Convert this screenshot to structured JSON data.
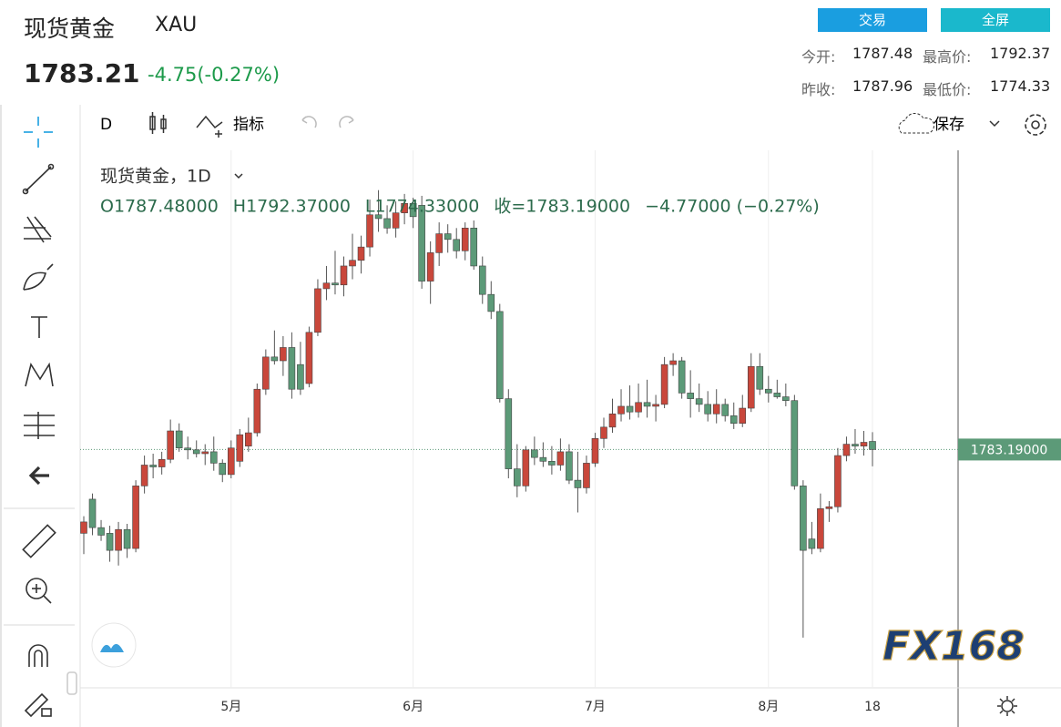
{
  "header": {
    "title": "现货黄金",
    "symbol": "XAU",
    "price": "1783.21",
    "change": "-4.75(-0.27%)",
    "buttons": [
      "交易",
      "全屏"
    ],
    "stats": [
      [
        "今开:",
        "1787.48",
        "最高价:",
        "1792.37"
      ],
      [
        "昨收:",
        "1787.96",
        "最低价:",
        "1774.33"
      ]
    ]
  },
  "toolbar": {
    "interval": "D",
    "indicators": "指标",
    "save": "保存"
  },
  "watermark": "FX168",
  "chart_data": {
    "type": "candlestick",
    "title": "现货黄金，1D",
    "legend": [
      "O1787.48000",
      "H1792.37000",
      "L1774.33000",
      "收=1783.19000",
      "−4.77000 (−0.27%)"
    ],
    "up_color": "#c9473b",
    "down_color": "#5c9a78",
    "ylim": [
      1657.5,
      1941
    ],
    "last_price": {
      "value": 1783.19,
      "label": "1783.19000"
    },
    "categories": [
      null,
      null,
      null,
      null,
      null,
      null,
      null,
      null,
      null,
      null,
      null,
      null,
      null,
      null,
      null,
      null,
      null,
      "5月",
      null,
      null,
      null,
      null,
      null,
      null,
      null,
      null,
      null,
      null,
      null,
      null,
      null,
      null,
      null,
      null,
      null,
      null,
      null,
      null,
      "6月",
      null,
      null,
      null,
      null,
      null,
      null,
      null,
      null,
      null,
      null,
      null,
      null,
      null,
      null,
      null,
      null,
      null,
      null,
      null,
      null,
      "7月",
      null,
      null,
      null,
      null,
      null,
      null,
      null,
      null,
      null,
      null,
      null,
      null,
      null,
      null,
      null,
      null,
      null,
      null,
      null,
      "8月",
      null,
      null,
      null,
      null,
      null,
      null,
      null,
      null,
      null,
      null,
      null,
      "18"
    ],
    "ohlc": [
      [
        1739,
        1748,
        1728,
        1745
      ],
      [
        1757,
        1760,
        1738,
        1742
      ],
      [
        1742,
        1746,
        1735,
        1738
      ],
      [
        1739,
        1743,
        1724,
        1730
      ],
      [
        1730,
        1745,
        1722,
        1741
      ],
      [
        1741,
        1744,
        1726,
        1731
      ],
      [
        1731,
        1767,
        1729,
        1764
      ],
      [
        1764,
        1780,
        1760,
        1775
      ],
      [
        1775,
        1781,
        1768,
        1774
      ],
      [
        1774,
        1782,
        1770,
        1778
      ],
      [
        1778,
        1799,
        1776,
        1793
      ],
      [
        1793,
        1797,
        1782,
        1784
      ],
      [
        1784,
        1790,
        1778,
        1783
      ],
      [
        1783,
        1788,
        1779,
        1781
      ],
      [
        1781,
        1786,
        1775,
        1782
      ],
      [
        1782,
        1790,
        1772,
        1776
      ],
      [
        1776,
        1778,
        1766,
        1770
      ],
      [
        1770,
        1788,
        1768,
        1784
      ],
      [
        1777,
        1794,
        1774,
        1791
      ],
      [
        1785,
        1800,
        1782,
        1792
      ],
      [
        1792,
        1818,
        1790,
        1815
      ],
      [
        1815,
        1836,
        1812,
        1832
      ],
      [
        1832,
        1846,
        1828,
        1830
      ],
      [
        1830,
        1843,
        1822,
        1837
      ],
      [
        1837,
        1845,
        1810,
        1815
      ],
      [
        1828,
        1840,
        1812,
        1815
      ],
      [
        1818,
        1848,
        1816,
        1845
      ],
      [
        1845,
        1873,
        1843,
        1868
      ],
      [
        1868,
        1880,
        1862,
        1871
      ],
      [
        1871,
        1888,
        1865,
        1870
      ],
      [
        1870,
        1885,
        1864,
        1880
      ],
      [
        1880,
        1897,
        1873,
        1883
      ],
      [
        1883,
        1896,
        1876,
        1890
      ],
      [
        1890,
        1915,
        1885,
        1907
      ],
      [
        1907,
        1920,
        1898,
        1905
      ],
      [
        1905,
        1912,
        1897,
        1900
      ],
      [
        1900,
        1914,
        1895,
        1908
      ],
      [
        1908,
        1918,
        1902,
        1913
      ],
      [
        1913,
        1916,
        1900,
        1906
      ],
      [
        1912,
        1917,
        1868,
        1872
      ],
      [
        1872,
        1893,
        1860,
        1887
      ],
      [
        1887,
        1903,
        1880,
        1897
      ],
      [
        1897,
        1902,
        1887,
        1894
      ],
      [
        1894,
        1900,
        1884,
        1888
      ],
      [
        1888,
        1903,
        1883,
        1900
      ],
      [
        1900,
        1904,
        1878,
        1880
      ],
      [
        1880,
        1885,
        1860,
        1865
      ],
      [
        1865,
        1872,
        1852,
        1856
      ],
      [
        1856,
        1860,
        1808,
        1810
      ],
      [
        1810,
        1815,
        1768,
        1773
      ],
      [
        1773,
        1786,
        1758,
        1764
      ],
      [
        1764,
        1785,
        1761,
        1783
      ],
      [
        1783,
        1790,
        1775,
        1779
      ],
      [
        1779,
        1787,
        1774,
        1777
      ],
      [
        1777,
        1785,
        1770,
        1775
      ],
      [
        1775,
        1789,
        1772,
        1782
      ],
      [
        1782,
        1786,
        1765,
        1767
      ],
      [
        1767,
        1782,
        1750,
        1763
      ],
      [
        1763,
        1780,
        1760,
        1776
      ],
      [
        1776,
        1792,
        1774,
        1789
      ],
      [
        1789,
        1800,
        1784,
        1795
      ],
      [
        1795,
        1810,
        1792,
        1802
      ],
      [
        1802,
        1815,
        1798,
        1806
      ],
      [
        1806,
        1817,
        1799,
        1803
      ],
      [
        1803,
        1818,
        1800,
        1808
      ],
      [
        1808,
        1820,
        1800,
        1806
      ],
      [
        1806,
        1812,
        1798,
        1807
      ],
      [
        1807,
        1832,
        1805,
        1828
      ],
      [
        1828,
        1834,
        1822,
        1830
      ],
      [
        1830,
        1832,
        1810,
        1813
      ],
      [
        1813,
        1825,
        1800,
        1810
      ],
      [
        1810,
        1818,
        1803,
        1807
      ],
      [
        1807,
        1814,
        1798,
        1802
      ],
      [
        1802,
        1815,
        1797,
        1807
      ],
      [
        1807,
        1810,
        1798,
        1801
      ],
      [
        1801,
        1808,
        1794,
        1797
      ],
      [
        1797,
        1812,
        1795,
        1805
      ],
      [
        1805,
        1834,
        1803,
        1827
      ],
      [
        1827,
        1834,
        1812,
        1815
      ],
      [
        1815,
        1822,
        1808,
        1813
      ],
      [
        1813,
        1820,
        1810,
        1811
      ],
      [
        1811,
        1818,
        1806,
        1809
      ],
      [
        1809,
        1812,
        1762,
        1764
      ],
      [
        1764,
        1767,
        1684,
        1730
      ],
      [
        1736,
        1745,
        1728,
        1731
      ],
      [
        1731,
        1760,
        1729,
        1752
      ],
      [
        1752,
        1756,
        1745,
        1753
      ],
      [
        1753,
        1784,
        1750,
        1780
      ],
      [
        1780,
        1790,
        1777,
        1786
      ],
      [
        1786,
        1794,
        1781,
        1785
      ],
      [
        1785,
        1793,
        1780,
        1787
      ],
      [
        1787.48,
        1792.37,
        1774.33,
        1783.19
      ]
    ]
  }
}
